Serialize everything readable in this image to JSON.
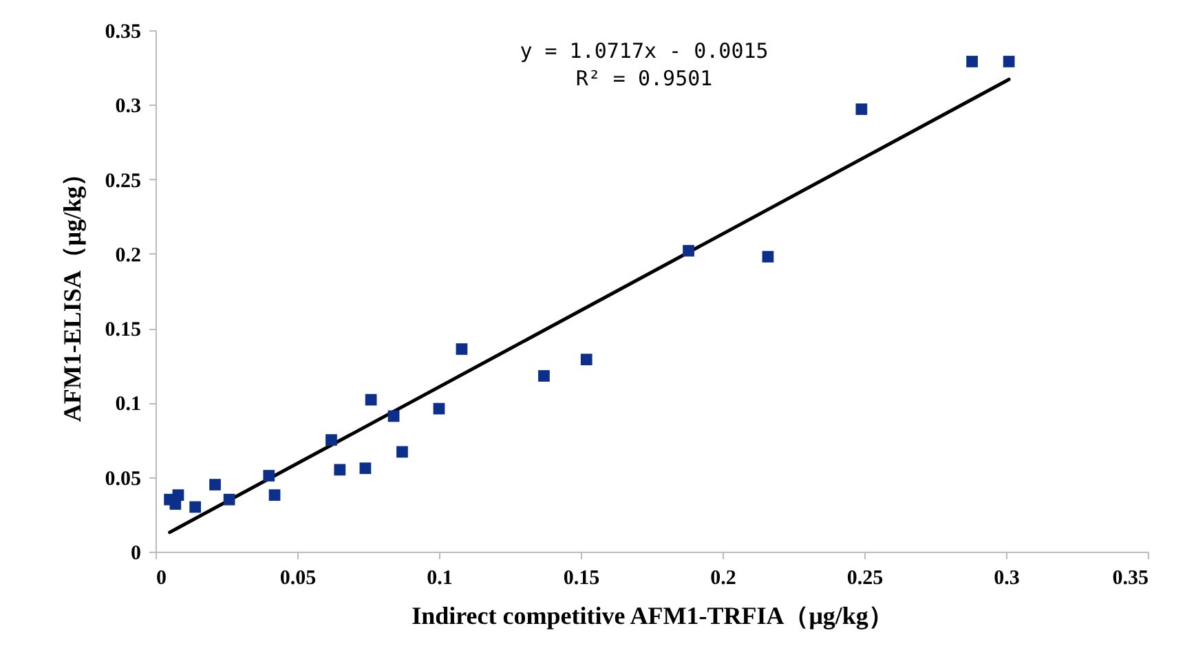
{
  "chart_data": {
    "type": "scatter",
    "xlabel": "Indirect competitive AFM1-TRFIA（μg/kg）",
    "ylabel": "AFM1-ELISA（μg/kg）",
    "annotations": [
      "y = 1.0717x - 0.0015",
      "R² = 0.9501"
    ],
    "xlim": [
      0,
      0.35
    ],
    "xticks": [
      0,
      0.05,
      0.1,
      0.15,
      0.2,
      0.25,
      0.3,
      0.35
    ],
    "ylim": [
      0,
      0.35
    ],
    "yticks": [
      0,
      0.05,
      0.1,
      0.15,
      0.2,
      0.25,
      0.3,
      0.35
    ],
    "grid": false,
    "series": [
      {
        "marker": "square",
        "color": "#0b2f8a",
        "x": [
          0.005,
          0.007,
          0.008,
          0.014,
          0.021,
          0.026,
          0.04,
          0.042,
          0.062,
          0.065,
          0.074,
          0.076,
          0.084,
          0.087,
          0.1,
          0.108,
          0.137,
          0.152,
          0.188,
          0.216,
          0.249,
          0.288,
          0.301
        ],
        "values": [
          0.035,
          0.032,
          0.038,
          0.03,
          0.045,
          0.035,
          0.051,
          0.038,
          0.075,
          0.055,
          0.056,
          0.102,
          0.091,
          0.067,
          0.096,
          0.136,
          0.118,
          0.129,
          0.202,
          0.198,
          0.297,
          0.329,
          0.329
        ]
      },
      {
        "type": "line",
        "marker": "none",
        "color": "#000000",
        "x": [
          0.005,
          0.301
        ],
        "values": [
          0.013,
          0.317
        ]
      }
    ]
  }
}
